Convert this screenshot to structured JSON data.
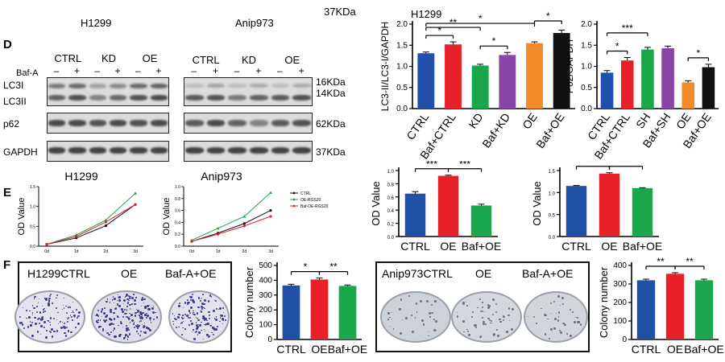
{
  "panels": {
    "D": {
      "letter": "D",
      "left_cell": "H1299",
      "right_cell": "Anip973",
      "baf_label": "Baf-A",
      "groups": [
        "CTRL",
        "KD",
        "OE"
      ],
      "signs": [
        "–",
        "+",
        "–",
        "+",
        "–",
        "+"
      ],
      "row_labels": [
        "LC3I",
        "LC3II",
        "p62",
        "GAPDH"
      ],
      "size_markers": [
        "16KDa",
        "14KDa",
        "62KDa",
        "37KDa"
      ],
      "lc3_title_kda": "37KDa",
      "lc3_cell": "H1299"
    },
    "E": {
      "letter": "E",
      "line_titles": [
        "H1299",
        "Anip973"
      ]
    },
    "F": {
      "letter": "F",
      "left_plate": [
        "H1299CTRL",
        "OE",
        "Baf-A+OE"
      ],
      "right_plate": [
        "Anip973CTRL",
        "OE",
        "Baf-A+OE"
      ]
    }
  },
  "colors": {
    "blue": "#2150a8",
    "red": "#e8202a",
    "green": "#1aa64a",
    "purple": "#8a45a8",
    "orange": "#f28a2c",
    "black": "#111111"
  },
  "chart_data": [
    {
      "id": "lc3",
      "type": "bar",
      "title": "H1299",
      "ylabel": "LC3-II/LC3-I/GAPDH",
      "ylim": [
        0,
        2.0
      ],
      "yticks": [
        "0.0",
        "0.5",
        "1.0",
        "1.5",
        "2.0"
      ],
      "categories": [
        "CTRL",
        "Baf+CTRL",
        "KD",
        "Baf+KD",
        "OE",
        "Baf+OE"
      ],
      "values": [
        1.31,
        1.52,
        1.02,
        1.27,
        1.55,
        1.79
      ],
      "errors": [
        0.03,
        0.06,
        0.03,
        0.06,
        0.03,
        0.07
      ],
      "colors": [
        "#2150a8",
        "#e8202a",
        "#1aa64a",
        "#8a45a8",
        "#f28a2c",
        "#111111"
      ],
      "annotations": [
        "*",
        "**",
        "*",
        "*",
        "*"
      ]
    },
    {
      "id": "p62",
      "type": "bar",
      "ylabel": "P62/GAPDH",
      "ylim": [
        0,
        2.0
      ],
      "yticks": [
        "0.0",
        "0.5",
        "1.0",
        "1.5",
        "2.0"
      ],
      "categories": [
        "CTRL",
        "Baf+CTRL",
        "SH",
        "Baf+SH",
        "OE",
        "Baf+OE"
      ],
      "values": [
        0.85,
        1.14,
        1.4,
        1.43,
        0.62,
        0.98
      ],
      "errors": [
        0.05,
        0.07,
        0.05,
        0.05,
        0.04,
        0.07
      ],
      "colors": [
        "#2150a8",
        "#e8202a",
        "#1aa64a",
        "#8a45a8",
        "#f28a2c",
        "#111111"
      ],
      "annotations": [
        "*",
        "***",
        "*"
      ]
    },
    {
      "id": "od1",
      "type": "bar",
      "ylabel": "OD Value",
      "ylim": [
        0,
        1.0
      ],
      "yticks": [
        "0.0",
        "0.2",
        "0.4",
        "0.6",
        "0.8",
        "1.0"
      ],
      "categories": [
        "CTRL",
        "OE",
        "Baf+OE"
      ],
      "values": [
        0.65,
        0.92,
        0.47
      ],
      "errors": [
        0.03,
        0.01,
        0.02
      ],
      "colors": [
        "#2150a8",
        "#e8202a",
        "#1aa64a"
      ],
      "annotations": [
        "***",
        "***"
      ]
    },
    {
      "id": "od2",
      "type": "bar",
      "ylabel": "OD Value",
      "ylim": [
        0,
        1.5
      ],
      "yticks": [
        "0.0",
        "0.5",
        "1.0",
        "1.5"
      ],
      "categories": [
        "CTRL",
        "OE",
        "Baf+OE"
      ],
      "values": [
        1.15,
        1.43,
        1.1
      ],
      "errors": [
        0.01,
        0.02,
        0.01
      ],
      "colors": [
        "#2150a8",
        "#e8202a",
        "#1aa64a"
      ],
      "annotations": [
        "***",
        "***"
      ]
    },
    {
      "id": "col1",
      "type": "bar",
      "ylabel": "Colony number",
      "ylim": [
        0,
        500
      ],
      "yticks": [
        "0",
        "100",
        "200",
        "300",
        "400",
        "500"
      ],
      "categories": [
        "CTRL",
        "OE",
        "Baf+OE"
      ],
      "values": [
        365,
        405,
        362
      ],
      "errors": [
        8,
        10,
        6
      ],
      "colors": [
        "#2150a8",
        "#e8202a",
        "#1aa64a"
      ],
      "annotations": [
        "*",
        "**"
      ]
    },
    {
      "id": "col2",
      "type": "bar",
      "ylabel": "Colony number",
      "ylim": [
        0,
        400
      ],
      "yticks": [
        "0",
        "100",
        "200",
        "300",
        "400"
      ],
      "categories": [
        "CTRL",
        "OE",
        "Baf+OE"
      ],
      "values": [
        320,
        355,
        320
      ],
      "errors": [
        6,
        6,
        6
      ],
      "colors": [
        "#2150a8",
        "#e8202a",
        "#1aa64a"
      ],
      "annotations": [
        "**",
        "**"
      ]
    },
    {
      "id": "lineH",
      "type": "line",
      "title": "H1299",
      "ylabel": "OD Value",
      "ylim": [
        0,
        1.6
      ],
      "yticks": [
        "0.0",
        "0.5",
        "1.0",
        "1.5"
      ],
      "categories": [
        "0d",
        "1d",
        "2d",
        "3d"
      ],
      "series": [
        {
          "name": "CTRL",
          "values": [
            0.05,
            0.22,
            0.55,
            1.12
          ],
          "color": "#111111"
        },
        {
          "name": "OE-RGS20",
          "values": [
            0.05,
            0.3,
            0.7,
            1.42
          ],
          "color": "#1aa64a"
        },
        {
          "name": "Baf-OE-RGS20",
          "values": [
            0.05,
            0.26,
            0.65,
            1.12
          ],
          "color": "#e8202a"
        }
      ]
    },
    {
      "id": "lineA",
      "type": "line",
      "title": "Anip973",
      "ylabel": "OD Value",
      "ylim": [
        0,
        1.0
      ],
      "yticks": [
        "0.0",
        "0.2",
        "0.4",
        "0.6",
        "0.8",
        "1.0"
      ],
      "categories": [
        "0d",
        "1d",
        "2d",
        "3d"
      ],
      "series": [
        {
          "name": "CTRL",
          "values": [
            0.08,
            0.22,
            0.38,
            0.6
          ],
          "color": "#111111"
        },
        {
          "name": "OE-RGS20",
          "values": [
            0.1,
            0.3,
            0.5,
            0.9
          ],
          "color": "#1aa64a"
        },
        {
          "name": "Baf-OE-RGS20",
          "values": [
            0.08,
            0.2,
            0.34,
            0.5
          ],
          "color": "#e8202a"
        }
      ]
    }
  ]
}
